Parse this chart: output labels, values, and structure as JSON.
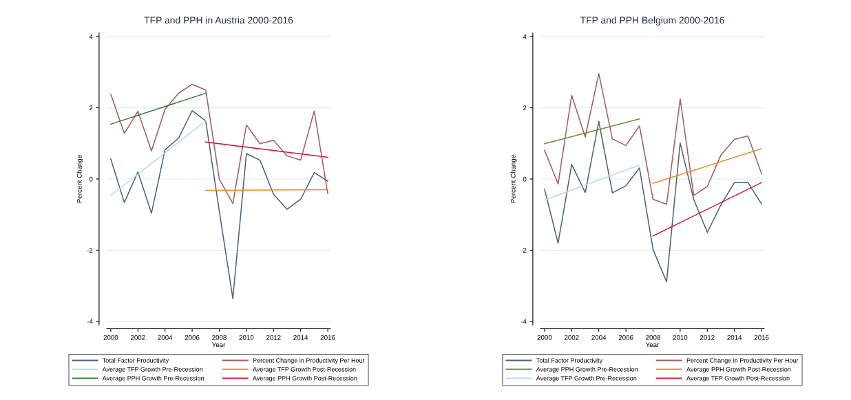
{
  "chart_data": [
    {
      "type": "line",
      "title": "TFP and PPH in Austria 2000-2016",
      "xlabel": "Year",
      "ylabel": "Percent Change",
      "xlim": [
        1999.7,
        2016.2
      ],
      "ylim": [
        -4.1,
        4.1
      ],
      "xticks": [
        2000,
        2002,
        2004,
        2006,
        2008,
        2010,
        2012,
        2014,
        2016
      ],
      "yticks": [
        -4,
        -2,
        0,
        2,
        4
      ],
      "grid": "y",
      "legend": "bottom",
      "marker": "none",
      "line_style": "solid",
      "series": [
        {
          "name": "Total Factor Productivity",
          "color": "#4a607a",
          "x": [
            2000,
            2001,
            2002,
            2003,
            2004,
            2005,
            2006,
            2007,
            2008,
            2009,
            2010,
            2011,
            2012,
            2013,
            2014,
            2015,
            2016
          ],
          "values": [
            0.56,
            -0.66,
            0.2,
            -0.96,
            0.82,
            1.15,
            1.92,
            1.63,
            -0.9,
            -3.36,
            0.71,
            0.53,
            -0.43,
            -0.85,
            -0.57,
            0.18,
            -0.06
          ]
        },
        {
          "name": "Percent Change in Productivity Per Hour",
          "color": "#a65a5a",
          "x": [
            2000,
            2001,
            2002,
            2003,
            2004,
            2005,
            2006,
            2007,
            2008,
            2009,
            2010,
            2011,
            2012,
            2013,
            2014,
            2015,
            2016
          ],
          "values": [
            2.38,
            1.28,
            1.9,
            0.79,
            1.96,
            2.41,
            2.66,
            2.5,
            0.0,
            -0.69,
            1.52,
            0.99,
            1.09,
            0.65,
            0.53,
            1.91,
            -0.41
          ]
        },
        {
          "name": "Average TFP Growth Pre-Recession",
          "color": "#b9d8e6",
          "x": [
            2000,
            2007
          ],
          "values": [
            -0.46,
            1.63
          ]
        },
        {
          "name": "Average TFP Growth Post-Recession",
          "color": "#f08a24",
          "x": [
            2007,
            2016
          ],
          "values": [
            -0.32,
            -0.3
          ]
        },
        {
          "name": "Average PPH Growth Pre-Recession",
          "color": "#2e7d32",
          "x": [
            2000,
            2007
          ],
          "values": [
            1.54,
            2.41
          ]
        },
        {
          "name": "Average PPH Growth Post-Recession",
          "color": "#d4143c",
          "x": [
            2007,
            2016
          ],
          "values": [
            1.04,
            0.61
          ]
        }
      ]
    },
    {
      "type": "line",
      "title": "TFP and PPH Belgium 2000-2016",
      "xlabel": "Year",
      "ylabel": "Percent Change",
      "xlim": [
        1999.7,
        2016.2
      ],
      "ylim": [
        -4.1,
        4.1
      ],
      "xticks": [
        2000,
        2002,
        2004,
        2006,
        2008,
        2010,
        2012,
        2014,
        2016
      ],
      "yticks": [
        -4,
        -2,
        0,
        2,
        4
      ],
      "grid": "y",
      "legend": "bottom",
      "marker": "none",
      "line_style": "solid",
      "series": [
        {
          "name": "Total Factor Productivity",
          "color": "#4a607a",
          "x": [
            2000,
            2001,
            2002,
            2003,
            2004,
            2005,
            2006,
            2007,
            2008,
            2009,
            2010,
            2011,
            2012,
            2013,
            2014,
            2015,
            2016
          ],
          "values": [
            -0.29,
            -1.8,
            0.41,
            -0.38,
            1.62,
            -0.39,
            -0.19,
            0.31,
            -1.98,
            -2.89,
            1.01,
            -0.57,
            -1.5,
            -0.73,
            -0.1,
            -0.1,
            -0.7
          ]
        },
        {
          "name": "Percent Change in Productivity Per Hour",
          "color": "#a65a5a",
          "x": [
            2000,
            2001,
            2002,
            2003,
            2004,
            2005,
            2006,
            2007,
            2008,
            2009,
            2010,
            2011,
            2012,
            2013,
            2014,
            2015,
            2016
          ],
          "values": [
            0.81,
            -0.14,
            2.35,
            1.18,
            2.96,
            1.13,
            0.94,
            1.49,
            -0.57,
            -0.71,
            2.25,
            -0.46,
            -0.21,
            0.67,
            1.11,
            1.21,
            0.15
          ]
        },
        {
          "name": "Average PPH Growth Pre-Recession",
          "color": "#6b8e3a",
          "x": [
            2000,
            2007
          ],
          "values": [
            0.99,
            1.69
          ]
        },
        {
          "name": "Average PPH Growth Post-Recession",
          "color": "#f08a24",
          "x": [
            2008,
            2016
          ],
          "values": [
            -0.12,
            0.85
          ]
        },
        {
          "name": "Average TFP Growth Pre-Recession",
          "color": "#b9d8e6",
          "x": [
            2000,
            2007
          ],
          "values": [
            -0.59,
            0.39
          ]
        },
        {
          "name": "Average TFP Growth Post-Recession",
          "color": "#d4143c",
          "x": [
            2008,
            2016
          ],
          "values": [
            -1.6,
            -0.1
          ]
        }
      ]
    }
  ]
}
